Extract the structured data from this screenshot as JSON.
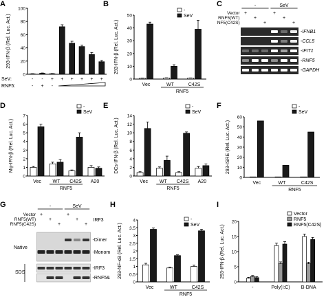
{
  "panels": {
    "A": {
      "label": "A"
    },
    "B": {
      "label": "B"
    },
    "C": {
      "label": "C"
    },
    "D": {
      "label": "D"
    },
    "E": {
      "label": "E"
    },
    "F": {
      "label": "F"
    },
    "G": {
      "label": "G"
    },
    "H": {
      "label": "H"
    },
    "I": {
      "label": "I"
    }
  },
  "legend": {
    "neg": "-",
    "sev": "SeV",
    "vector": "Vector",
    "rnf5": "RNF5",
    "c42s": "RNF5(C42S)"
  },
  "colors": {
    "black": "#1a1a1a",
    "white": "#ffffff",
    "gray": "#9a9a9a"
  },
  "chart_data": [
    {
      "id": "A",
      "type": "bar",
      "ylabel": "293-IFN-β (Rel. Luc. Act.)",
      "ylim": [
        0,
        100
      ],
      "yticks": [
        0,
        20,
        40,
        60,
        80,
        100
      ],
      "values": [
        0.6,
        1.5,
        0.8,
        72,
        47,
        42,
        30,
        19
      ],
      "errors": [
        0.3,
        0.5,
        0.3,
        3,
        3,
        2,
        3,
        2
      ],
      "row_labels": [
        "SeV:",
        "RNF5:"
      ],
      "sev": [
        "-",
        "-",
        "+",
        "+",
        "+",
        "+",
        "+",
        "+"
      ],
      "rnf5": [
        "-",
        "+",
        "-",
        "",
        "",
        "",
        "",
        ""
      ]
    },
    {
      "id": "B",
      "type": "bar",
      "ylabel": "293-IFN-β (Rel. Luc. Act.)",
      "ylim": [
        0,
        50
      ],
      "yticks": [
        0,
        10,
        20,
        30,
        40,
        50
      ],
      "categories": [
        "Vec",
        "WT",
        "C42S"
      ],
      "group_label": "RNF5",
      "series": [
        {
          "name": "-",
          "values": [
            0.6,
            0.8,
            0.7
          ],
          "errors": [
            0.2,
            0.2,
            0.2
          ]
        },
        {
          "name": "SeV",
          "values": [
            43,
            10,
            39
          ],
          "errors": [
            1.5,
            1.2,
            7
          ]
        }
      ]
    },
    {
      "id": "D",
      "type": "bar",
      "ylabel": "Mφ-IFN-β (Rel. Luc. Act.)",
      "ylim": [
        0,
        7
      ],
      "yticks": [
        0,
        1,
        2,
        3,
        4,
        5,
        6,
        7
      ],
      "categories": [
        "Vec",
        "WT",
        "C42S",
        "A20"
      ],
      "group_label": "RNF5",
      "series": [
        {
          "name": "-",
          "values": [
            1.0,
            1.4,
            0.6,
            1.0
          ],
          "errors": [
            0.1,
            0.2,
            0.1,
            0.2
          ]
        },
        {
          "name": "SeV",
          "values": [
            5.7,
            1.6,
            4.5,
            0.9
          ],
          "errors": [
            0.3,
            0.3,
            0.5,
            0.15
          ]
        }
      ]
    },
    {
      "id": "E",
      "type": "bar",
      "ylabel": "DCs-IFN-β (Rel. Luc. Act.)",
      "ylim": [
        0,
        14
      ],
      "yticks": [
        0,
        2,
        4,
        6,
        8,
        10,
        12,
        14
      ],
      "categories": [
        "Vec",
        "WT",
        "C42S",
        "A20"
      ],
      "group_label": "RNF5",
      "series": [
        {
          "name": "-",
          "values": [
            0.8,
            1.8,
            0.8,
            1.8
          ],
          "errors": [
            0.2,
            0.3,
            0.2,
            0.4
          ]
        },
        {
          "name": "SeV",
          "values": [
            11,
            3.6,
            9.9,
            2.4
          ],
          "errors": [
            1.5,
            1.0,
            0.3,
            0.4
          ]
        }
      ]
    },
    {
      "id": "F",
      "type": "bar",
      "ylabel": "293-ISRE (Rel. Luc. Act.)",
      "ylim": [
        0,
        60
      ],
      "yticks": [
        0,
        10,
        20,
        30,
        40,
        50,
        60
      ],
      "categories": [
        "Vec",
        "WT",
        "C42S"
      ],
      "group_label": "RNF5",
      "series": [
        {
          "name": "-",
          "values": [
            0.5,
            0.5,
            0.5
          ],
          "errors": [
            0,
            0,
            0
          ]
        },
        {
          "name": "SeV",
          "values": [
            56,
            12,
            45
          ],
          "errors": [
            0,
            0,
            0
          ]
        }
      ]
    },
    {
      "id": "H",
      "type": "bar",
      "ylabel": "293-NF-κB (Rel. Luc. Act.)",
      "ylim": [
        0,
        4
      ],
      "yticks": [
        0,
        0.5,
        1,
        1.5,
        2,
        2.5,
        3,
        3.5,
        4
      ],
      "categories": [
        "Vec",
        "WT",
        "C42S"
      ],
      "group_label": "RNF5",
      "series": [
        {
          "name": "-",
          "values": [
            1.1,
            0.9,
            1.0
          ],
          "errors": [
            0.1,
            0.05,
            0.08
          ]
        },
        {
          "name": "SeV",
          "values": [
            3.4,
            1.7,
            3.3
          ],
          "errors": [
            0.08,
            0.05,
            0.1
          ]
        }
      ]
    },
    {
      "id": "I",
      "type": "bar",
      "ylabel": "293-IFN-β (Rel. Luc. Act.)",
      "ylim": [
        0,
        20
      ],
      "yticks": [
        0,
        5,
        10,
        15,
        20
      ],
      "categories": [
        "-",
        "Poly(I:C)",
        "B-DNA"
      ],
      "series": [
        {
          "name": "Vector",
          "values": [
            1.2,
            12,
            15
          ],
          "errors": [
            0.3,
            0.8,
            0.8
          ]
        },
        {
          "name": "RNF5",
          "values": [
            1.8,
            6,
            6
          ],
          "errors": [
            0.3,
            0.6,
            0.5
          ]
        },
        {
          "name": "RNF5(C42S)",
          "values": [
            1.4,
            12.5,
            14
          ],
          "errors": [
            0.3,
            0.8,
            0.7
          ]
        }
      ]
    }
  ],
  "gel_C": {
    "header_neg": "-",
    "header_sev": "SeV",
    "row_labels": [
      "Vector",
      "RNF5(WT)",
      "RNF5(C42S)"
    ],
    "row_signs": [
      [
        "+",
        "",
        "",
        "+",
        "",
        ""
      ],
      [
        "",
        "+",
        "",
        "",
        "+",
        ""
      ],
      [
        "",
        "",
        "+",
        "",
        "",
        "+"
      ]
    ],
    "bands": [
      "IFNB1",
      "CCL5",
      "IFIT1",
      "RNF5",
      "GAPDH"
    ],
    "band_intensity": [
      [
        0,
        0,
        0,
        1,
        0.2,
        0.9
      ],
      [
        0,
        0,
        0,
        1,
        0.3,
        0.9
      ],
      [
        0.2,
        0.2,
        0.2,
        1,
        0.5,
        1
      ],
      [
        0.4,
        1,
        1,
        0.4,
        1,
        1
      ],
      [
        1,
        1,
        1,
        1,
        1,
        1
      ]
    ]
  },
  "gel_G": {
    "header_neg": "-",
    "header_sev": "SeV",
    "row_labels": [
      "Vector",
      "RNF5(WT)",
      "RNF5(C42S)"
    ],
    "row_signs": [
      [
        "+",
        "",
        "",
        "+",
        "",
        ""
      ],
      [
        "",
        "+",
        "",
        "",
        "+",
        ""
      ],
      [
        "",
        "",
        "+",
        "",
        "",
        "+"
      ]
    ],
    "antibody": "IRF3",
    "native_label": "Native",
    "sds_label": "SDS",
    "band_labels": [
      "-Dimer",
      "-Monomer",
      "-IRF3",
      "-RNF5&C42S"
    ]
  }
}
